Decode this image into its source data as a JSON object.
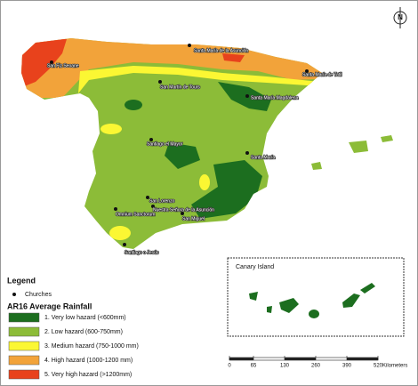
{
  "north": "N",
  "churches": [
    {
      "name": "Santa María de la Asunción"
    },
    {
      "name": "San Fiz Seoane"
    },
    {
      "name": "Santa María de Tatil"
    },
    {
      "name": "San Martín de Tours"
    },
    {
      "name": "Santa María Magdalena"
    },
    {
      "name": "Santiago el Mayor"
    },
    {
      "name": "Santa María"
    },
    {
      "name": "San Lorenzo"
    },
    {
      "name": "Nuestra Señora de la Asunción"
    },
    {
      "name": "Omnium Sanctorum"
    },
    {
      "name": "San Miguel"
    },
    {
      "name": "Santiago o Jesús"
    }
  ],
  "legend": {
    "title": "Legend",
    "church_label": "Churches",
    "rainfall_title": "AR16 Average Rainfall",
    "items": [
      {
        "label": "1. Very low hazard (<600mm)",
        "color": "#1c6e1f"
      },
      {
        "label": "2. Low hazard (600-750mm)",
        "color": "#8cbc38"
      },
      {
        "label": "3. Medium hazard (750-1000 mm)",
        "color": "#fbf733"
      },
      {
        "label": "4. High hazard (1000-1200 mm)",
        "color": "#f2a33a"
      },
      {
        "label": "5. Very high hazard (>1200mm)",
        "color": "#e8421c"
      }
    ]
  },
  "inset": {
    "title": "Canary Island"
  },
  "scale": {
    "ticks": [
      0,
      65,
      130,
      260,
      390,
      520
    ],
    "unit": "Kilometers"
  }
}
